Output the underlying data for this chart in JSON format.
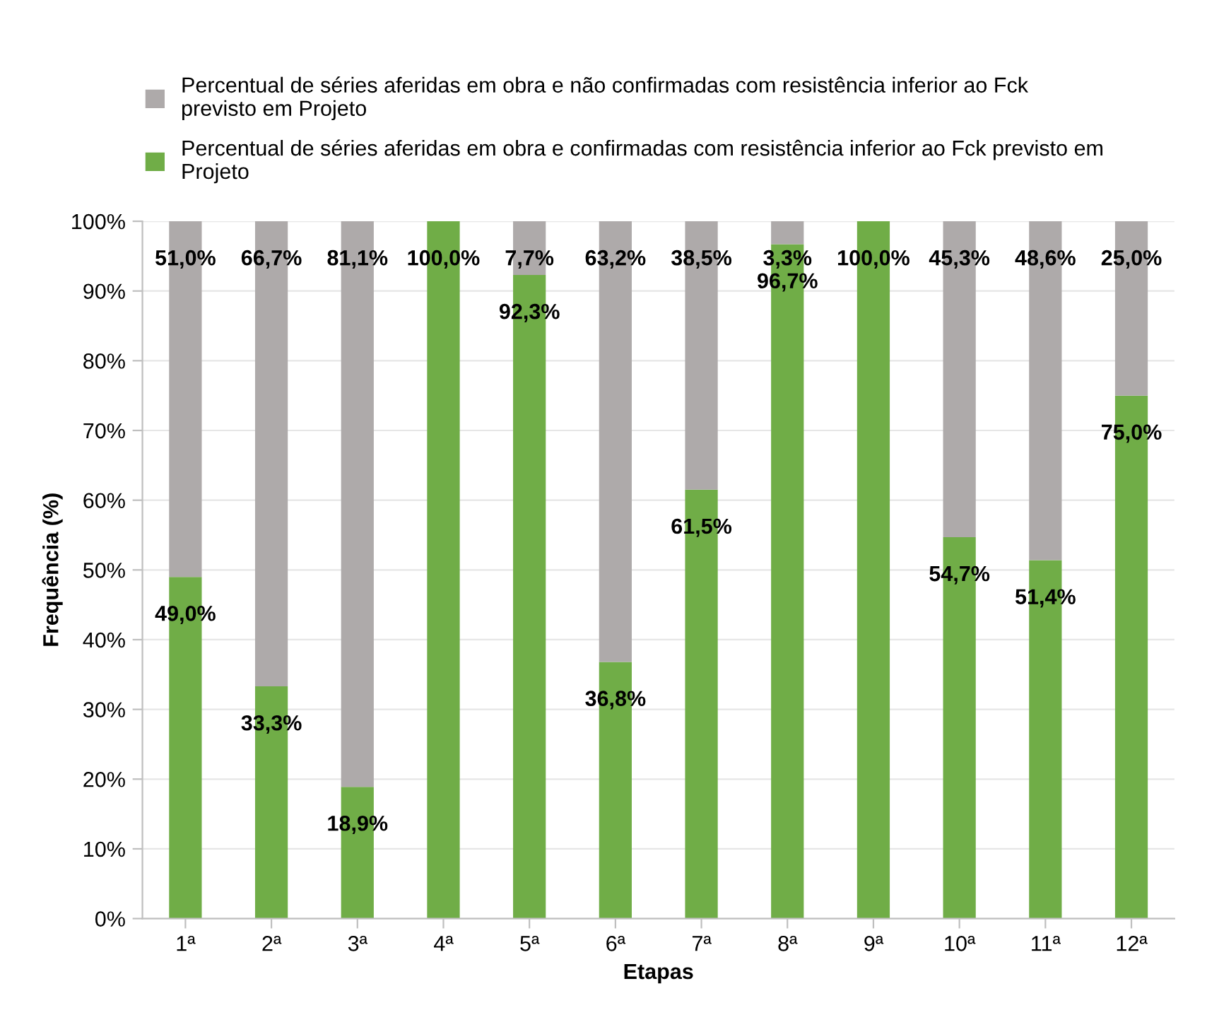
{
  "chart_data": {
    "type": "bar",
    "stacked": true,
    "xlabel": "Etapas",
    "ylabel": "Frequência (%)",
    "categories": [
      "1ª",
      "2ª",
      "3ª",
      "4ª",
      "5ª",
      "6ª",
      "7ª",
      "8ª",
      "9ª",
      "10ª",
      "11ª",
      "12ª"
    ],
    "series": [
      {
        "name": "Percentual de séries aferidas em obra e confirmadas com resistência inferior ao Fck previsto em Projeto",
        "color": "#70ad47",
        "values": [
          49.0,
          33.3,
          18.9,
          100.0,
          92.3,
          36.8,
          61.5,
          96.7,
          100.0,
          54.7,
          51.4,
          75.0
        ],
        "value_labels": [
          "49,0%",
          "33,3%",
          "18,9%",
          "100,0%",
          "92,3%",
          "36,8%",
          "61,5%",
          "96,7%",
          "100,0%",
          "54,7%",
          "51,4%",
          "75,0%"
        ]
      },
      {
        "name": "Percentual de séries aferidas em obra e não confirmadas com resistência inferior ao Fck previsto em Projeto",
        "color": "#aeaaaa",
        "values": [
          51.0,
          66.7,
          81.1,
          0,
          7.7,
          63.2,
          38.5,
          3.3,
          0,
          45.3,
          48.6,
          25.0
        ],
        "value_labels": [
          "51,0%",
          "66,7%",
          "81,1%",
          null,
          "7,7%",
          "63,2%",
          "38,5%",
          "3,3%",
          null,
          "45,3%",
          "48,6%",
          "25,0%"
        ]
      }
    ],
    "ylim": [
      0,
      100
    ],
    "yticks": [
      {
        "value": 0,
        "label": "0%"
      },
      {
        "value": 10,
        "label": "10%"
      },
      {
        "value": 20,
        "label": "20%"
      },
      {
        "value": 30,
        "label": "30%"
      },
      {
        "value": 40,
        "label": "40%"
      },
      {
        "value": 50,
        "label": "50%"
      },
      {
        "value": 60,
        "label": "60%"
      },
      {
        "value": 70,
        "label": "70%"
      },
      {
        "value": 80,
        "label": "80%"
      },
      {
        "value": 90,
        "label": "90%"
      },
      {
        "value": 100,
        "label": "100%"
      }
    ],
    "grid": "y",
    "legend": "top"
  }
}
